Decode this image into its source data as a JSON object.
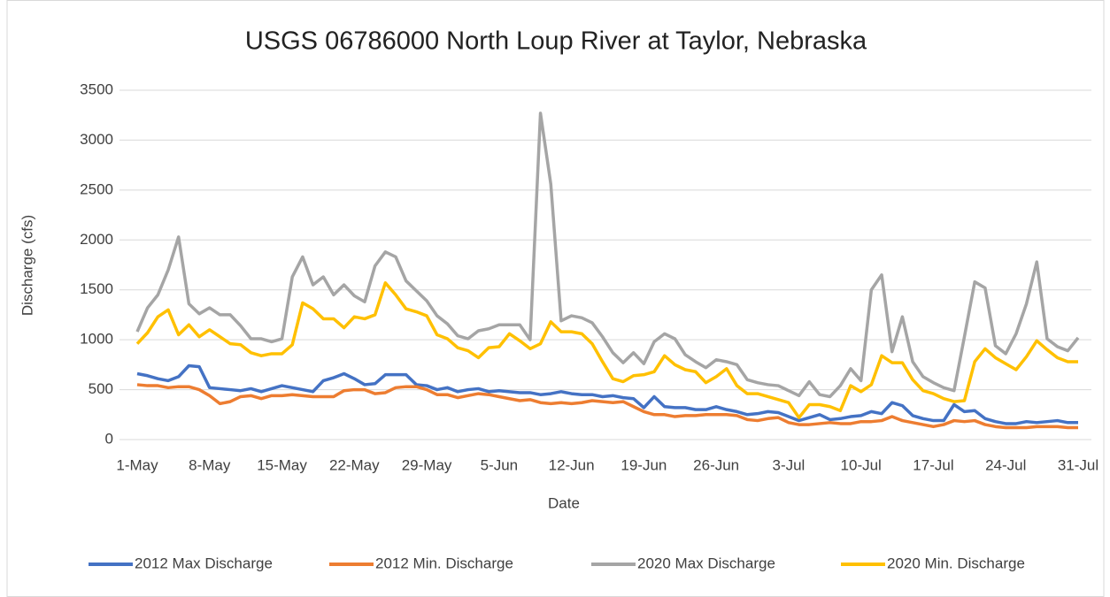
{
  "chart_data": {
    "type": "line",
    "title": "USGS 06786000 North Loup River at Taylor, Nebraska",
    "x_label": "Date",
    "y_label": "Discharge (cfs)",
    "categories": [
      "1-May",
      null,
      null,
      null,
      null,
      null,
      null,
      "8-May",
      null,
      null,
      null,
      null,
      null,
      null,
      "15-May",
      null,
      null,
      null,
      null,
      null,
      null,
      "22-May",
      null,
      null,
      null,
      null,
      null,
      null,
      "29-May",
      null,
      null,
      null,
      null,
      null,
      null,
      "5-Jun",
      null,
      null,
      null,
      null,
      null,
      null,
      "12-Jun",
      null,
      null,
      null,
      null,
      null,
      null,
      "19-Jun",
      null,
      null,
      null,
      null,
      null,
      null,
      "26-Jun",
      null,
      null,
      null,
      null,
      null,
      null,
      "3-Jul",
      null,
      null,
      null,
      null,
      null,
      null,
      "10-Jul",
      null,
      null,
      null,
      null,
      null,
      null,
      "17-Jul",
      null,
      null,
      null,
      null,
      null,
      null,
      "24-Jul",
      null,
      null,
      null,
      null,
      null,
      null,
      "31-Jul"
    ],
    "ylim": [
      0,
      3500
    ],
    "yticks": [
      0,
      500,
      1000,
      1500,
      2000,
      2500,
      3000,
      3500
    ],
    "grid": true,
    "legend": "bottom",
    "series": [
      {
        "name": "2012 Max Discharge",
        "color": "#4472c4",
        "values": [
          660,
          640,
          610,
          590,
          630,
          740,
          730,
          520,
          510,
          500,
          490,
          510,
          480,
          510,
          540,
          520,
          500,
          480,
          590,
          620,
          660,
          610,
          550,
          560,
          650,
          650,
          650,
          550,
          540,
          500,
          520,
          480,
          500,
          510,
          480,
          490,
          480,
          470,
          470,
          450,
          460,
          480,
          460,
          450,
          450,
          430,
          440,
          420,
          410,
          320,
          430,
          330,
          320,
          320,
          300,
          300,
          330,
          300,
          280,
          250,
          260,
          280,
          270,
          230,
          190,
          220,
          250,
          200,
          210,
          230,
          240,
          280,
          260,
          370,
          340,
          240,
          210,
          190,
          190,
          350,
          280,
          290,
          210,
          180,
          160,
          160,
          180,
          170,
          180,
          190,
          170,
          170
        ]
      },
      {
        "name": "2012 Min. Discharge",
        "color": "#ed7d31",
        "values": [
          550,
          540,
          540,
          520,
          530,
          530,
          500,
          440,
          360,
          380,
          430,
          440,
          410,
          440,
          440,
          450,
          440,
          430,
          430,
          430,
          490,
          500,
          500,
          460,
          470,
          520,
          530,
          530,
          500,
          450,
          450,
          420,
          440,
          460,
          450,
          430,
          410,
          390,
          400,
          370,
          360,
          370,
          360,
          370,
          390,
          380,
          370,
          380,
          330,
          280,
          250,
          250,
          230,
          240,
          240,
          250,
          250,
          250,
          240,
          200,
          190,
          210,
          220,
          170,
          150,
          150,
          160,
          170,
          160,
          160,
          180,
          180,
          190,
          230,
          190,
          170,
          150,
          130,
          150,
          190,
          180,
          190,
          150,
          130,
          120,
          120,
          120,
          130,
          130,
          130,
          120,
          120
        ]
      },
      {
        "name": "2020 Max Discharge",
        "color": "#a5a5a5",
        "values": [
          1080,
          1320,
          1450,
          1700,
          2030,
          1360,
          1260,
          1320,
          1250,
          1250,
          1140,
          1010,
          1010,
          980,
          1010,
          1630,
          1830,
          1550,
          1630,
          1450,
          1550,
          1440,
          1380,
          1740,
          1880,
          1830,
          1590,
          1490,
          1390,
          1240,
          1160,
          1040,
          1010,
          1090,
          1110,
          1150,
          1150,
          1150,
          1000,
          3270,
          2560,
          1190,
          1240,
          1220,
          1170,
          1030,
          870,
          770,
          870,
          760,
          980,
          1060,
          1010,
          850,
          780,
          720,
          800,
          780,
          750,
          600,
          570,
          550,
          540,
          490,
          440,
          580,
          450,
          430,
          540,
          710,
          590,
          1500,
          1650,
          880,
          1230,
          780,
          630,
          570,
          520,
          490,
          1030,
          1580,
          1520,
          940,
          860,
          1060,
          1360,
          1780,
          1010,
          930,
          890,
          1020
        ]
      },
      {
        "name": "2020 Min. Discharge",
        "color": "#ffc000",
        "values": [
          960,
          1070,
          1230,
          1300,
          1050,
          1150,
          1030,
          1100,
          1030,
          960,
          950,
          870,
          840,
          860,
          860,
          950,
          1370,
          1310,
          1210,
          1210,
          1120,
          1230,
          1210,
          1250,
          1570,
          1450,
          1310,
          1280,
          1240,
          1050,
          1010,
          920,
          890,
          820,
          920,
          930,
          1060,
          990,
          910,
          960,
          1180,
          1080,
          1080,
          1060,
          960,
          780,
          610,
          580,
          640,
          650,
          680,
          840,
          750,
          700,
          680,
          570,
          630,
          710,
          540,
          460,
          460,
          430,
          400,
          370,
          220,
          350,
          350,
          330,
          290,
          540,
          480,
          550,
          840,
          770,
          770,
          600,
          490,
          460,
          410,
          380,
          390,
          780,
          910,
          820,
          760,
          700,
          830,
          990,
          900,
          820,
          780,
          780
        ]
      }
    ]
  }
}
